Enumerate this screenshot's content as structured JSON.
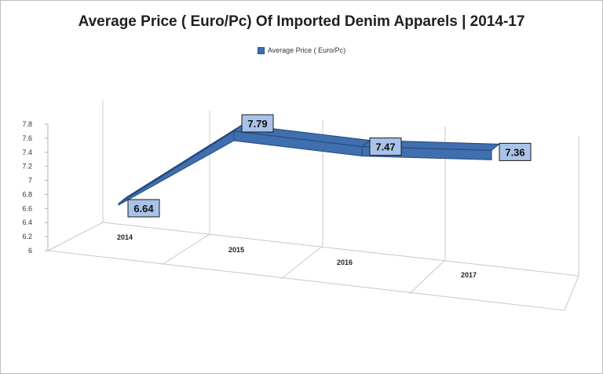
{
  "chart_data": {
    "type": "area",
    "title": "Average Price ( Euro/Pc) Of Imported Denim Apparels | 2014-17",
    "categories": [
      "2014",
      "2015",
      "2016",
      "2017"
    ],
    "series": [
      {
        "name": "Average Price ( Euro/Pc)",
        "values": [
          6.64,
          7.79,
          7.47,
          7.36
        ]
      }
    ],
    "y_ticks": [
      "6",
      "6.2",
      "6.4",
      "6.6",
      "6.8",
      "7",
      "7.2",
      "7.4",
      "7.6",
      "7.8"
    ],
    "ylim": [
      6,
      7.8
    ],
    "grid": true,
    "legend_position": "top",
    "colors": {
      "series": "#3f6fae",
      "series_dark": "#24487a",
      "label_bg": "#a9c3e8"
    }
  }
}
